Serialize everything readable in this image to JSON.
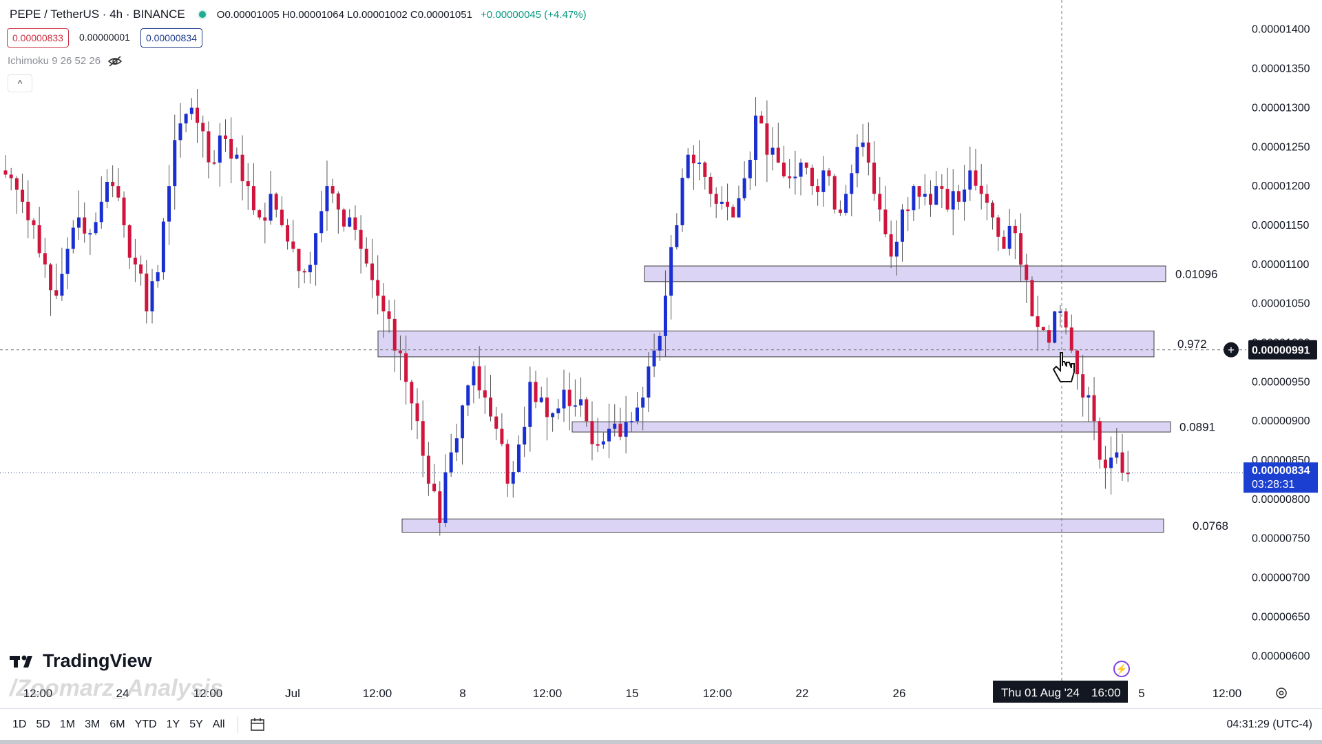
{
  "header": {
    "symbol": "PEPE / TetherUS · 4h · BINANCE",
    "ohlc": "O0.00001005 H0.00001064 L0.00001002 C0.00001051",
    "change": "+0.00000045 (+4.47%)",
    "sell_price": "0.00000833",
    "spread": "0.00000001",
    "buy_price": "0.00000834",
    "indicator": "Ichimoku 9 26 52 26",
    "collapse_glyph": "^"
  },
  "chart_data": {
    "type": "candlestick",
    "y_axis": {
      "range": [
        5.8e-06,
        1.42e-05
      ],
      "ticks": [
        "0.00001400",
        "0.00001350",
        "0.00001300",
        "0.00001250",
        "0.00001200",
        "0.00001150",
        "0.00001100",
        "0.00001050",
        "0.00001000",
        "0.00000950",
        "0.00000900",
        "0.00000850",
        "0.00000800",
        "0.00000750",
        "0.00000700",
        "0.00000650",
        "0.00000600"
      ]
    },
    "x_axis": {
      "ticks": [
        "12:00",
        "24",
        "12:00",
        "Jul",
        "12:00",
        "8",
        "12:00",
        "15",
        "12:00",
        "22",
        "26",
        "5",
        "12:00"
      ]
    },
    "crosshair": {
      "price_label": "0.00000991",
      "time_label": "Thu 01 Aug '24",
      "time_label_hour": "16:00"
    },
    "current_price": {
      "label": "0.00000834",
      "countdown": "03:28:31"
    },
    "zones": [
      {
        "label": "0.01096",
        "low": 1.078e-05,
        "high": 1.098e-05
      },
      {
        "label": "0.972",
        "low": 9.82e-06,
        "high": 1.015e-05
      },
      {
        "label": "0.0891",
        "low": 8.86e-06,
        "high": 8.99e-06
      },
      {
        "label": "0.0768",
        "low": 7.58e-06,
        "high": 7.75e-06
      }
    ],
    "colors": {
      "up": "#1a2fd1",
      "down": "#d0153d",
      "zone": "#dcd4f5",
      "zone_border": "#3a3a3a"
    },
    "candles_close_path": [
      1.21e-05,
      1.18e-05,
      1.15e-05,
      1.1e-05,
      1.06e-05,
      1.12e-05,
      1.16e-05,
      1.14e-05,
      1.18e-05,
      1.2e-05,
      1.15e-05,
      1.1e-05,
      1.04e-05,
      1.09e-05,
      1.2e-05,
      1.28e-05,
      1.3e-05,
      1.27e-05,
      1.23e-05,
      1.26e-05,
      1.24e-05,
      1.2e-05,
      1.16e-05,
      1.19e-05,
      1.15e-05,
      1.12e-05,
      1.09e-05,
      1.14e-05,
      1.2e-05,
      1.17e-05,
      1.16e-05,
      1.12e-05,
      1.08e-05,
      1.04e-05,
      9.9e-06,
      9.5e-06,
      9e-06,
      8.2e-06,
      7.7e-06,
      8.6e-06,
      9.2e-06,
      9.7e-06,
      9.3e-06,
      8.9e-06,
      8.2e-06,
      8.7e-06,
      9.5e-06,
      9.3e-06,
      9.1e-06,
      9.4e-06,
      9.2e-06,
      9e-06,
      8.7e-06,
      8.9e-06,
      8.8e-06,
      9e-06,
      9.3e-06,
      9.9e-06,
      1.06e-05,
      1.15e-05,
      1.24e-05,
      1.23e-05,
      1.19e-05,
      1.18e-05,
      1.16e-05,
      1.21e-05,
      1.29e-05,
      1.24e-05,
      1.23e-05,
      1.21e-05,
      1.23e-05,
      1.2e-05,
      1.22e-05,
      1.17e-05,
      1.19e-05,
      1.25e-05,
      1.23e-05,
      1.17e-05,
      1.11e-05,
      1.17e-05,
      1.2e-05,
      1.19e-05,
      1.2e-05,
      1.17e-05,
      1.18e-05,
      1.22e-05,
      1.19e-05,
      1.16e-05,
      1.12e-05,
      1.14e-05,
      1.08e-05,
      1.02e-05,
      1e-05,
      1.04e-05,
      9.9e-06,
      9.3e-06,
      9e-06,
      8.4e-06,
      8.6e-06,
      8.34e-06
    ]
  },
  "branding": {
    "tradingview": "TradingView",
    "watermark": "/Zoomarz_Analysis"
  },
  "bottom": {
    "ranges": [
      "1D",
      "5D",
      "1M",
      "3M",
      "6M",
      "YTD",
      "1Y",
      "5Y",
      "All"
    ],
    "clock": "04:31:29 (UTC-4)"
  }
}
